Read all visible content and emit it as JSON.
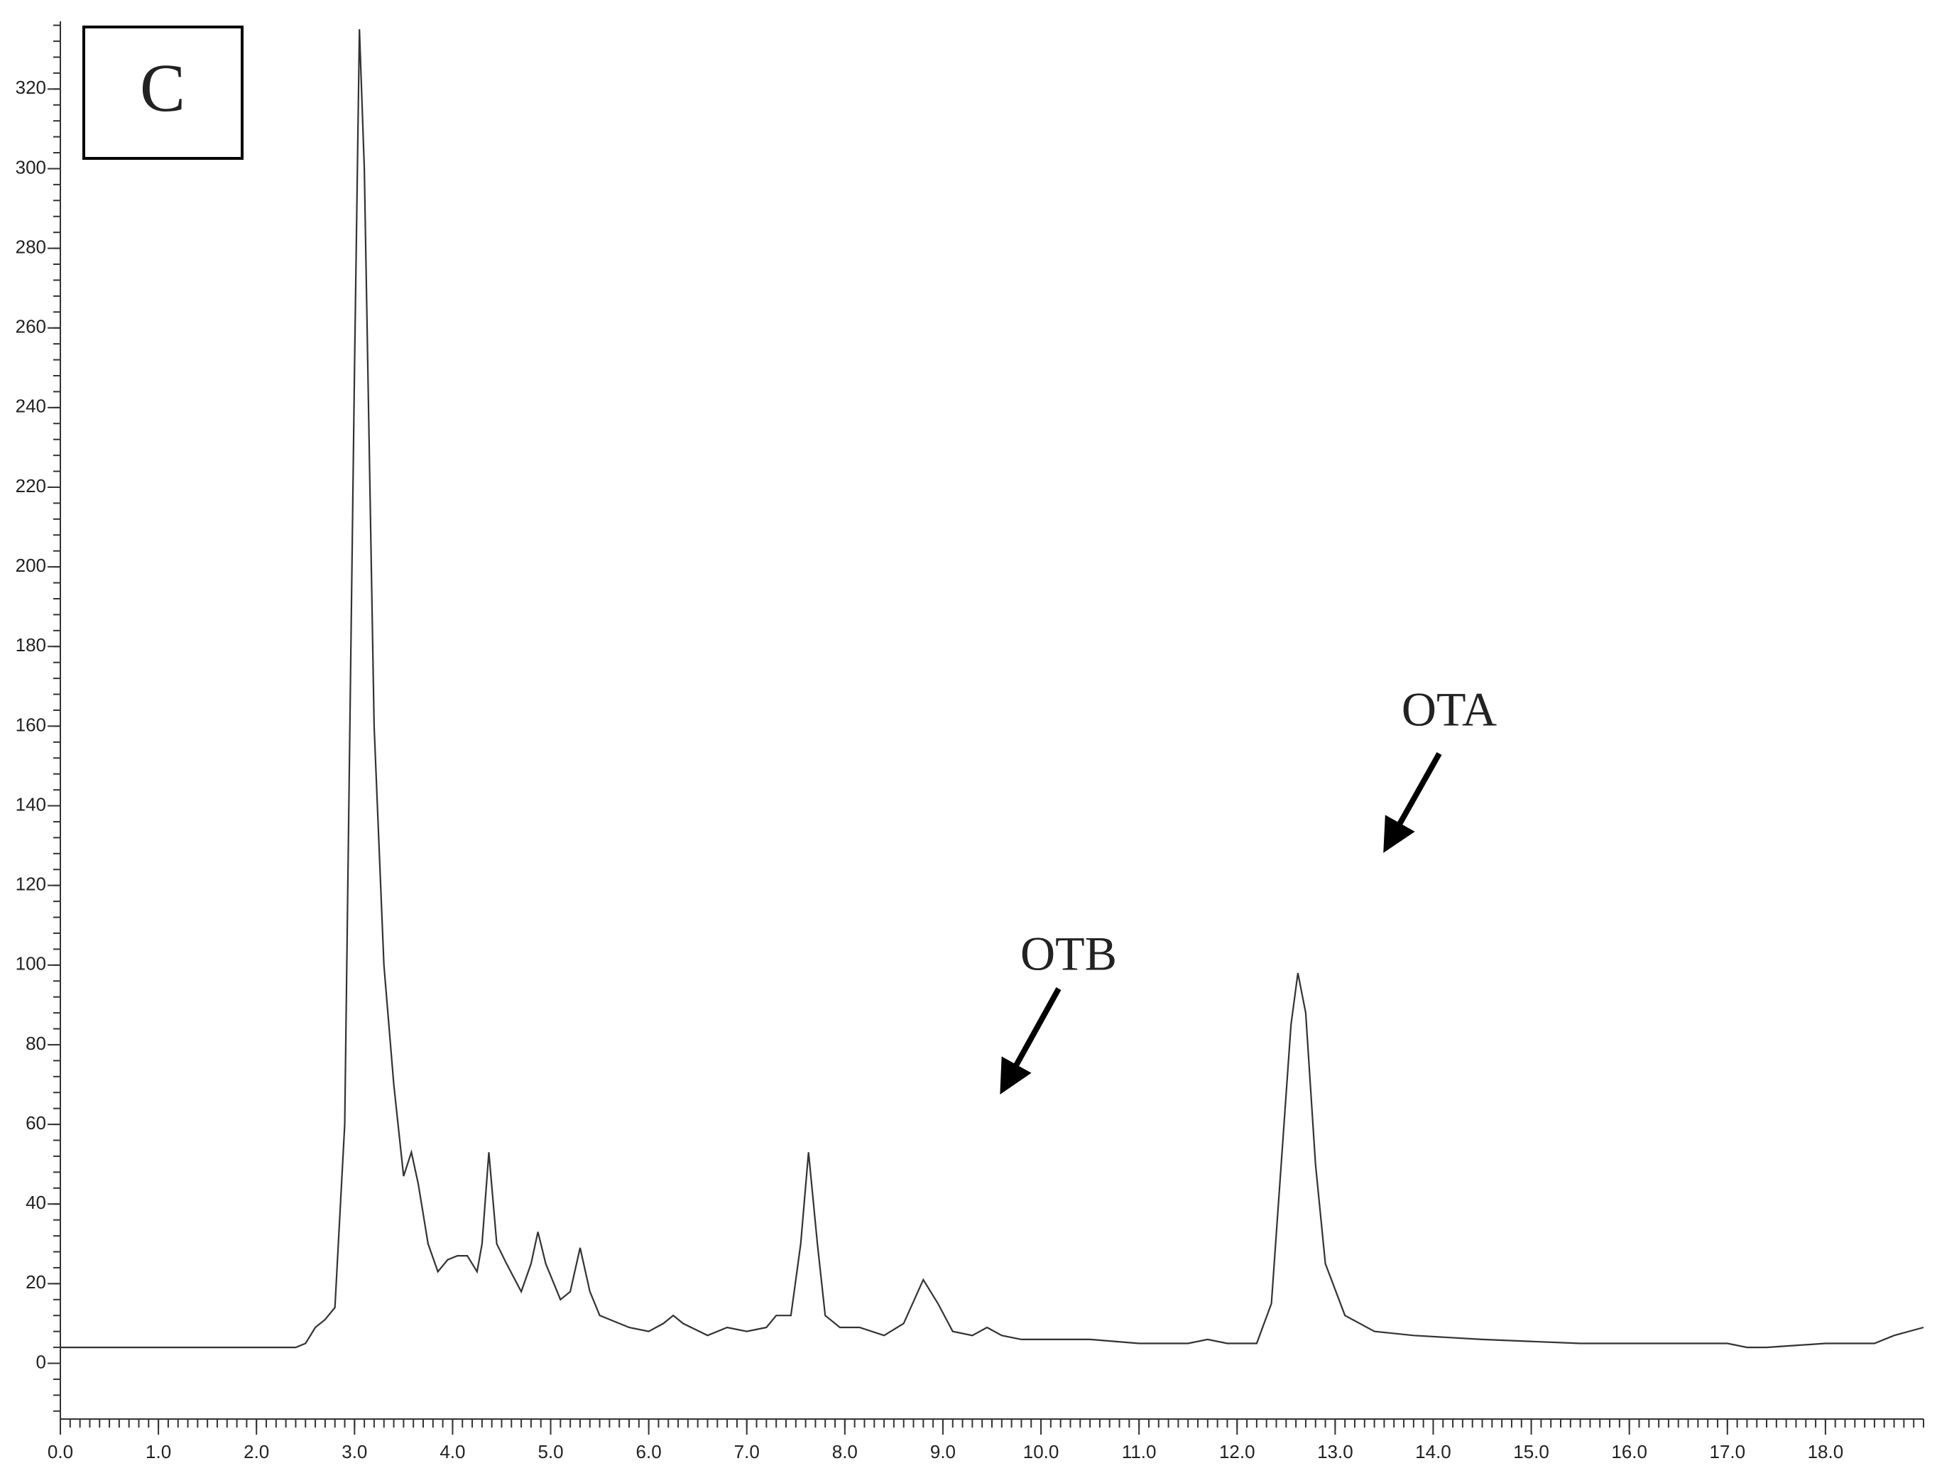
{
  "chart_data": {
    "type": "line",
    "panel_label": "C",
    "annotations": [
      "OTB",
      "OTA"
    ],
    "x": [
      0,
      2.4,
      2.5,
      2.6,
      2.7,
      2.8,
      2.9,
      3.0,
      3.05,
      3.1,
      3.2,
      3.3,
      3.4,
      3.5,
      3.58,
      3.65,
      3.75,
      3.85,
      3.95,
      4.05,
      4.15,
      4.25,
      4.3,
      4.37,
      4.45,
      4.55,
      4.7,
      4.8,
      4.87,
      4.95,
      5.1,
      5.2,
      5.3,
      5.4,
      5.5,
      5.8,
      6.0,
      6.15,
      6.25,
      6.35,
      6.6,
      6.8,
      7.0,
      7.2,
      7.3,
      7.45,
      7.55,
      7.63,
      7.72,
      7.8,
      7.95,
      8.15,
      8.4,
      8.6,
      8.8,
      8.95,
      9.1,
      9.3,
      9.45,
      9.6,
      9.8,
      10.5,
      11.0,
      11.5,
      11.7,
      11.9,
      12.2,
      12.35,
      12.45,
      12.55,
      12.62,
      12.7,
      12.8,
      12.9,
      13.1,
      13.4,
      13.8,
      14.5,
      15.5,
      17.0,
      17.2,
      17.4,
      18.0,
      18.5,
      18.7,
      19.0
    ],
    "series": [
      {
        "color": "#333333",
        "values": [
          4,
          4,
          5,
          9,
          11,
          14,
          60,
          250,
          335,
          300,
          160,
          100,
          70,
          47,
          53,
          45,
          30,
          23,
          26,
          27,
          27,
          23,
          30,
          53,
          30,
          25,
          18,
          25,
          33,
          25,
          16,
          18,
          29,
          18,
          12,
          9,
          8,
          10,
          12,
          10,
          7,
          9,
          8,
          9,
          12,
          12,
          30,
          53,
          30,
          12,
          9,
          9,
          7,
          10,
          21,
          15,
          8,
          7,
          9,
          7,
          6,
          6,
          5,
          5,
          6,
          5,
          5,
          15,
          50,
          85,
          98,
          88,
          50,
          25,
          12,
          8,
          7,
          6,
          5,
          5,
          4,
          4,
          5,
          5,
          7,
          9
        ]
      }
    ],
    "xlim": [
      0,
      19
    ],
    "ylim": [
      -14,
      337
    ],
    "xticks": [
      {
        "value": 0,
        "label": "0.0"
      },
      {
        "value": 1,
        "label": "1.0"
      },
      {
        "value": 2,
        "label": "2.0"
      },
      {
        "value": 3,
        "label": "3.0"
      },
      {
        "value": 4,
        "label": "4.0"
      },
      {
        "value": 5,
        "label": "5.0"
      },
      {
        "value": 6,
        "label": "6.0"
      },
      {
        "value": 7,
        "label": "7.0"
      },
      {
        "value": 8,
        "label": "8.0"
      },
      {
        "value": 9,
        "label": "9.0"
      },
      {
        "value": 10,
        "label": "10.0"
      },
      {
        "value": 11,
        "label": "11.0"
      },
      {
        "value": 12,
        "label": "12.0"
      },
      {
        "value": 13,
        "label": "13.0"
      },
      {
        "value": 14,
        "label": "14.0"
      },
      {
        "value": 15,
        "label": "15.0"
      },
      {
        "value": 16,
        "label": "16.0"
      },
      {
        "value": 17,
        "label": "17.0"
      },
      {
        "value": 18,
        "label": "18.0"
      }
    ],
    "yticks": [
      0,
      20,
      40,
      60,
      80,
      100,
      120,
      140,
      160,
      180,
      200,
      220,
      240,
      260,
      280,
      300,
      320
    ],
    "grid": false
  }
}
